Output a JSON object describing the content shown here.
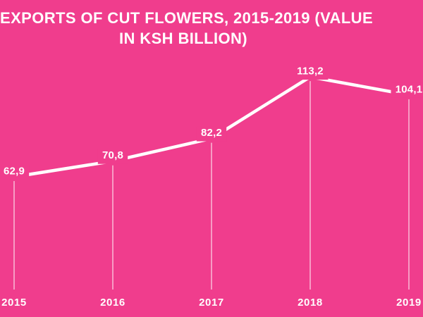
{
  "header": {
    "lines": [
      "EXPORTS OF CUT FLOWERS, 2015-2019 (VALUE",
      "IN KSH BILLION)"
    ]
  },
  "chart_data": {
    "type": "line",
    "title": "EXPORTS OF CUT FLOWERS, 2015-2019 (VALUE IN KSH BILLION)",
    "categories": [
      "2015",
      "2016",
      "2017",
      "2018",
      "2019"
    ],
    "values": [
      62.9,
      70.8,
      82.2,
      113.2,
      104.1
    ],
    "value_labels": [
      "62,9",
      "70,8",
      "82,2",
      "113,2",
      "104,1"
    ],
    "xlabel": "",
    "ylabel": "",
    "legend": false,
    "grid": false,
    "y_axis_visible": false,
    "data_labels_visible": true,
    "drop_lines_visible": true
  },
  "colors": {
    "background": "#F03D8D",
    "line": "#FFFFFF",
    "text": "#FFFFFF",
    "drop_line": "rgba(255,255,255,0.75)"
  }
}
